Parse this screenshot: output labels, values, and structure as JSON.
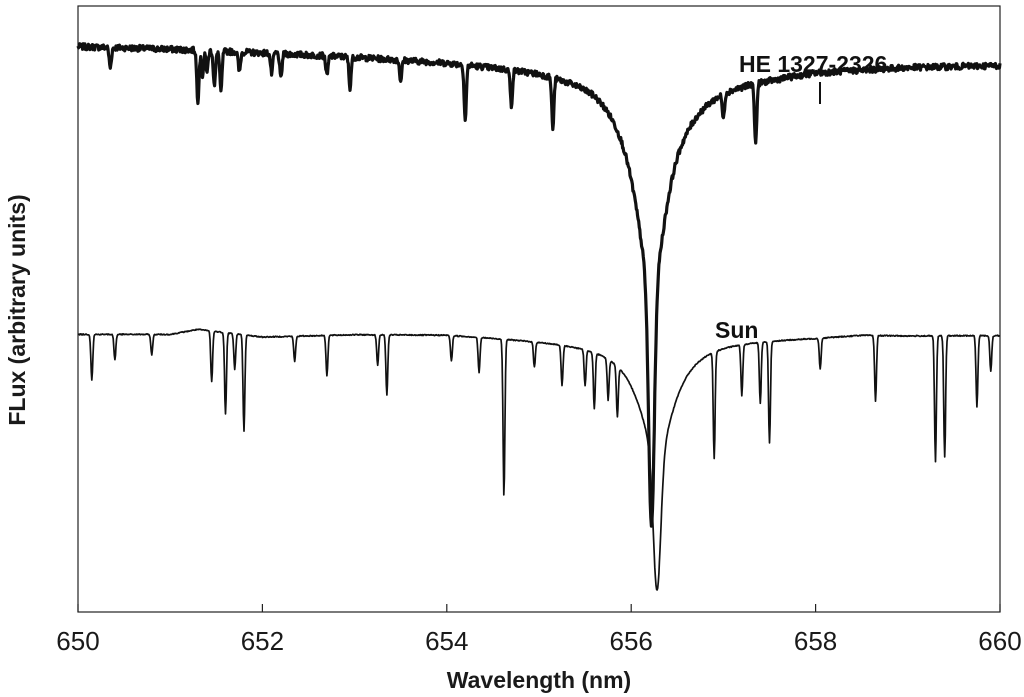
{
  "chart_data": {
    "type": "line",
    "title": "",
    "xlabel": "Wavelength (nm)",
    "ylabel": "FLux (arbitrary units)",
    "xlim": [
      650,
      660
    ],
    "xticks": [
      650,
      652,
      654,
      656,
      658,
      660
    ],
    "ylim": [
      0,
      1.2
    ],
    "yticks_shown": false,
    "grid": false,
    "legend": "none",
    "line_color": "#111111",
    "series": [
      {
        "name": "HE 1327-2326",
        "label_text": "HE 1327-2326",
        "continuum": {
          "x": [
            650,
            651,
            652,
            653,
            654,
            655,
            655.6,
            656,
            656.6,
            657,
            658,
            659,
            660
          ],
          "y": [
            1.12,
            1.115,
            1.108,
            1.1,
            1.09,
            1.075,
            1.058,
            1.03,
            1.03,
            1.05,
            1.072,
            1.08,
            1.083
          ]
        },
        "h_alpha": {
          "center": 656.22,
          "depth": 0.86,
          "core_width": 0.03,
          "wing_width": 0.2
        },
        "metal_lines": [
          [
            650.35,
            0.04
          ],
          [
            651.3,
            0.1
          ],
          [
            651.35,
            0.05
          ],
          [
            651.4,
            0.04
          ],
          [
            651.48,
            0.07
          ],
          [
            651.55,
            0.08
          ],
          [
            651.75,
            0.04
          ],
          [
            652.1,
            0.04
          ],
          [
            652.2,
            0.05
          ],
          [
            652.7,
            0.04
          ],
          [
            652.95,
            0.06
          ],
          [
            653.5,
            0.04
          ],
          [
            654.2,
            0.11
          ],
          [
            654.7,
            0.07
          ],
          [
            655.15,
            0.1
          ],
          [
            657.0,
            0.05
          ],
          [
            657.35,
            0.12
          ]
        ]
      },
      {
        "name": "Sun",
        "label_text": "Sun",
        "continuum": {
          "x": [
            650,
            651,
            651.3,
            652,
            653,
            654,
            655,
            656,
            657,
            658,
            658.5,
            659,
            660
          ],
          "y": [
            0.55,
            0.55,
            0.56,
            0.545,
            0.55,
            0.55,
            0.54,
            0.53,
            0.54,
            0.545,
            0.55,
            0.548,
            0.548
          ]
        },
        "h_alpha": {
          "center": 656.28,
          "depth": 0.49,
          "core_width": 0.04,
          "wing_width": 0.22
        },
        "metal_lines": [
          [
            650.15,
            0.09
          ],
          [
            650.4,
            0.05
          ],
          [
            650.8,
            0.04
          ],
          [
            651.45,
            0.1
          ],
          [
            651.6,
            0.16
          ],
          [
            651.7,
            0.07
          ],
          [
            651.8,
            0.19
          ],
          [
            652.35,
            0.05
          ],
          [
            652.7,
            0.08
          ],
          [
            653.25,
            0.06
          ],
          [
            653.35,
            0.12
          ],
          [
            654.05,
            0.05
          ],
          [
            654.35,
            0.07
          ],
          [
            654.62,
            0.31
          ],
          [
            654.95,
            0.05
          ],
          [
            655.25,
            0.08
          ],
          [
            655.5,
            0.07
          ],
          [
            655.6,
            0.11
          ],
          [
            655.75,
            0.08
          ],
          [
            655.85,
            0.1
          ],
          [
            656.9,
            0.21
          ],
          [
            657.2,
            0.1
          ],
          [
            657.4,
            0.12
          ],
          [
            657.5,
            0.2
          ],
          [
            658.05,
            0.06
          ],
          [
            658.65,
            0.13
          ],
          [
            659.3,
            0.25
          ],
          [
            659.4,
            0.24
          ],
          [
            659.75,
            0.14
          ],
          [
            659.9,
            0.07
          ]
        ]
      }
    ]
  }
}
